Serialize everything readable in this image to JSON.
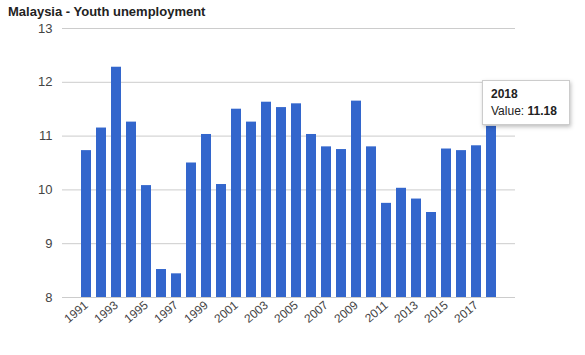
{
  "chart_data": {
    "type": "bar",
    "title": "Malaysia - Youth unemployment",
    "x": [
      1991,
      1992,
      1993,
      1994,
      1995,
      1996,
      1997,
      1998,
      1999,
      2000,
      2001,
      2002,
      2003,
      2004,
      2005,
      2006,
      2007,
      2008,
      2009,
      2010,
      2011,
      2012,
      2013,
      2014,
      2015,
      2016,
      2017,
      2018
    ],
    "values": [
      10.73,
      11.15,
      12.28,
      11.26,
      10.08,
      8.52,
      8.44,
      10.5,
      11.03,
      10.1,
      11.5,
      11.26,
      11.63,
      11.53,
      11.6,
      11.03,
      10.8,
      10.75,
      11.65,
      10.8,
      9.75,
      10.03,
      9.83,
      9.58,
      10.76,
      10.73,
      10.82,
      11.18
    ],
    "color": "#3366cc",
    "xticks": [
      1991,
      1993,
      1995,
      1997,
      1999,
      2001,
      2003,
      2005,
      2007,
      2009,
      2011,
      2013,
      2015,
      2017
    ],
    "ylim": [
      8,
      13
    ],
    "yticks": [
      8,
      9,
      10,
      11,
      12,
      13
    ],
    "grid": true,
    "tooltip": {
      "x": 2018,
      "label": "Value:"
    }
  }
}
